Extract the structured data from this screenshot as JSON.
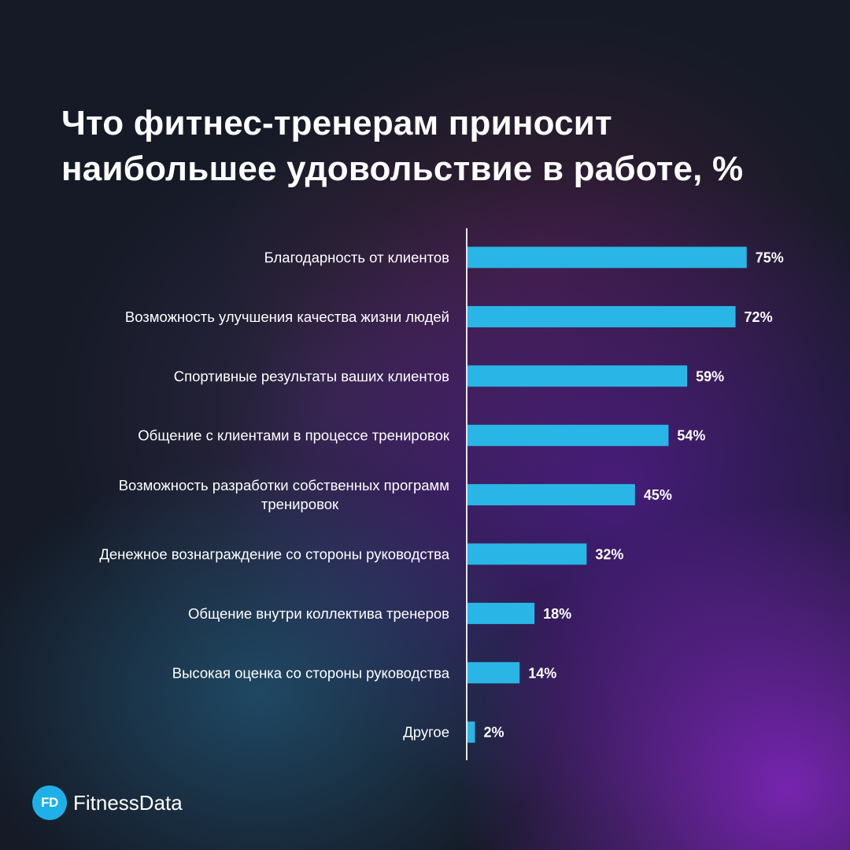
{
  "title": {
    "line1": "Что фитнес-тренерам приносит",
    "line2": "наибольшее удовольствие в работе, %"
  },
  "colors": {
    "bar": "#29b6e6",
    "axis": "#e6e6ee",
    "background": "#151a26"
  },
  "chart_data": {
    "type": "bar",
    "orientation": "horizontal",
    "categories": [
      "Благодарность от клиентов",
      "Возможность улучшения качества жизни людей",
      "Спортивные результаты ваших клиентов",
      "Общение с клиентами в процессе тренировок",
      "Возможность разработки собственных программ тренировок",
      "Денежное вознаграждение со стороны руководства",
      "Общение внутри коллектива тренеров",
      "Высокая оценка со стороны руководства",
      "Другое"
    ],
    "category_lines": [
      [
        "Благодарность от клиентов"
      ],
      [
        "Возможность улучшения качества жизни людей"
      ],
      [
        "Спортивные результаты ваших клиентов"
      ],
      [
        "Общение с клиентами в процессе тренировок"
      ],
      [
        "Возможность разработки собственных программ",
        "тренировок"
      ],
      [
        "Денежное вознаграждение со стороны руководства"
      ],
      [
        "Общение внутри коллектива тренеров"
      ],
      [
        "Высокая оценка со стороны руководства"
      ],
      [
        "Другое"
      ]
    ],
    "values": [
      75,
      72,
      59,
      54,
      45,
      32,
      18,
      14,
      2
    ],
    "value_labels": [
      "75%",
      "72%",
      "59%",
      "54%",
      "45%",
      "32%",
      "18%",
      "14%",
      "2%"
    ],
    "unit": "%",
    "xlim": [
      0,
      100
    ],
    "grid": false
  },
  "brand": {
    "mark": "FD",
    "name": "FitnessData"
  }
}
